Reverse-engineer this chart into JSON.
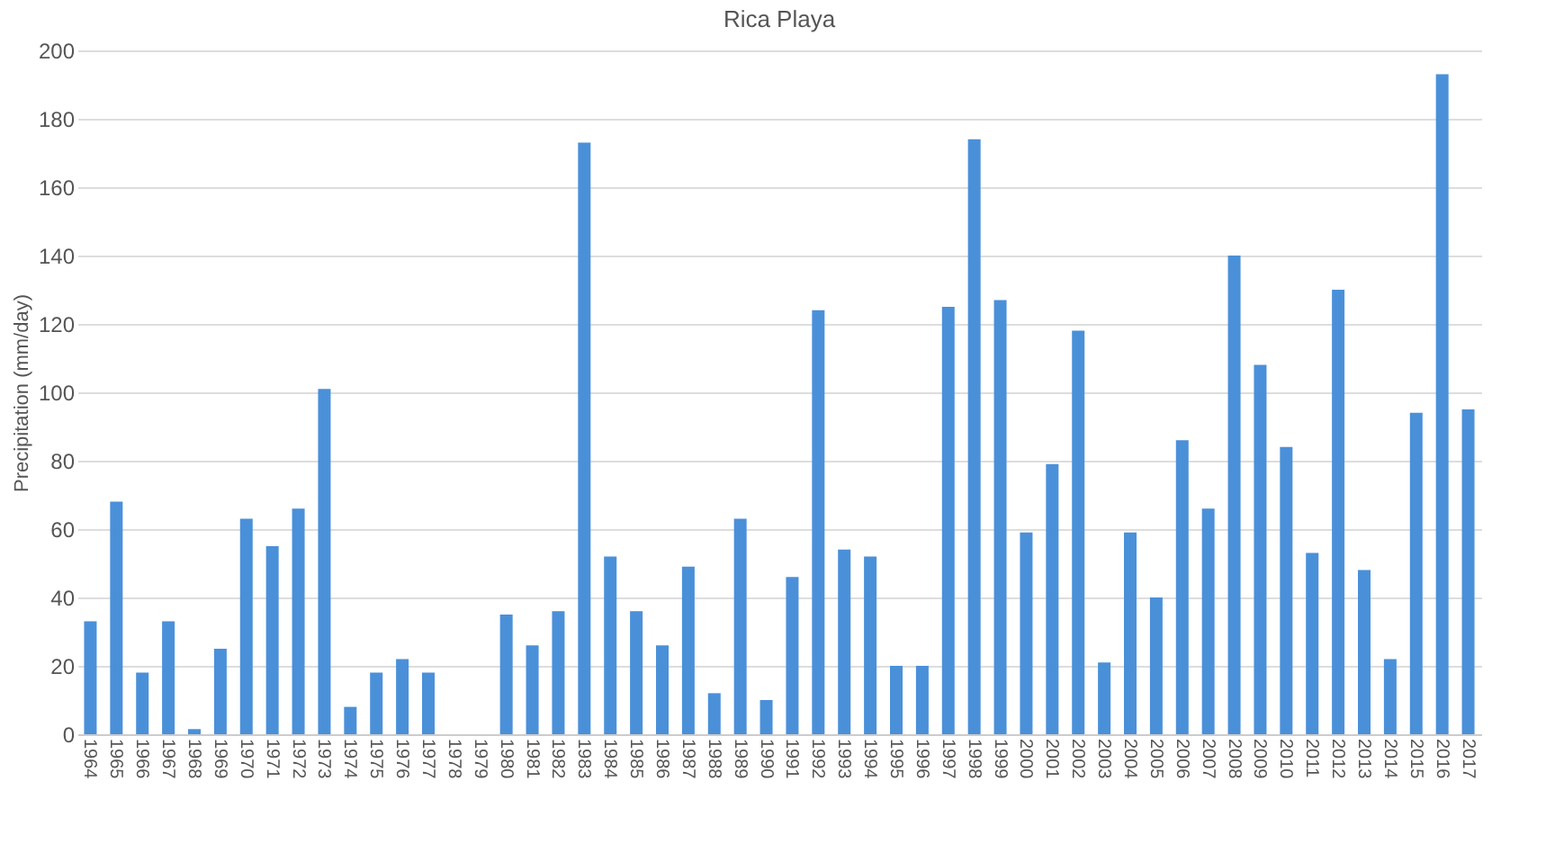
{
  "chart_data": {
    "type": "bar",
    "title": "Rica Playa",
    "ylabel": "Precipitation (mm/day)",
    "categories": [
      "1964",
      "1965",
      "1966",
      "1967",
      "1968",
      "1969",
      "1970",
      "1971",
      "1972",
      "1973",
      "1974",
      "1975",
      "1976",
      "1977",
      "1978",
      "1979",
      "1980",
      "1981",
      "1982",
      "1983",
      "1984",
      "1985",
      "1986",
      "1987",
      "1988",
      "1989",
      "1990",
      "1991",
      "1992",
      "1993",
      "1994",
      "1995",
      "1996",
      "1997",
      "1998",
      "1999",
      "2000",
      "2001",
      "2002",
      "2003",
      "2004",
      "2005",
      "2006",
      "2007",
      "2008",
      "2009",
      "2010",
      "2011",
      "2012",
      "2013",
      "2014",
      "2015",
      "2016",
      "2017"
    ],
    "values": [
      33,
      68,
      18,
      33,
      1.5,
      25,
      63,
      55,
      66,
      101,
      8,
      18,
      22,
      18,
      0,
      0,
      35,
      26,
      36,
      173,
      52,
      36,
      26,
      49,
      12,
      63,
      10,
      46,
      124,
      54,
      52,
      20,
      20,
      125,
      174,
      127,
      59,
      79,
      118,
      21,
      59,
      40,
      86,
      66,
      140,
      108,
      84,
      53,
      130,
      48,
      22,
      94,
      193,
      95
    ],
    "color": "#4a90d9",
    "ylim": [
      0,
      200
    ],
    "yticks": [
      0,
      20,
      40,
      60,
      80,
      100,
      120,
      140,
      160,
      180,
      200
    ],
    "grid": "y"
  }
}
